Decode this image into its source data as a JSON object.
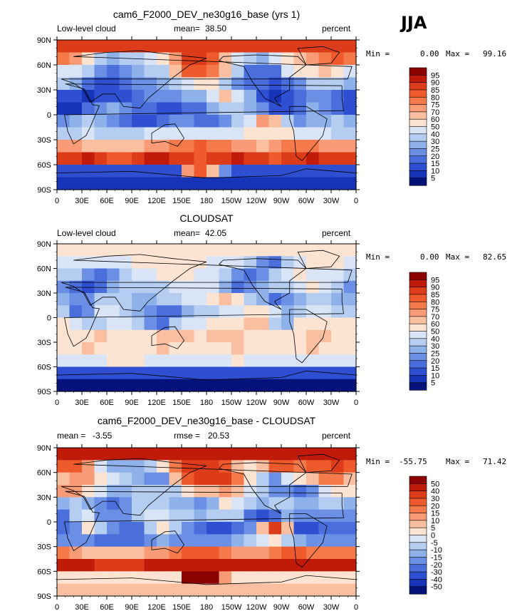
{
  "season": "JJA",
  "unit": "percent",
  "chart_data": [
    {
      "type": "heatmap",
      "title": "cam6_F2000_DEV_ne30g16_base (yrs 1)",
      "left_label": "Low-level cloud",
      "stat1_label": "mean=",
      "stat1_value": "38.50",
      "stat2_label": "",
      "stat2_value": "",
      "min_label": "Min =",
      "min_value": "0.00",
      "max_label": "Max =",
      "max_value": "99.16",
      "levels": [
        "95",
        "90",
        "85",
        "80",
        "75",
        "70",
        "60",
        "50",
        "40",
        "30",
        "25",
        "20",
        "15",
        "10",
        "5"
      ],
      "colors": [
        "#8b0000",
        "#c01a0a",
        "#dc3c1a",
        "#ee5a2c",
        "#f47a4c",
        "#f89b76",
        "#f9bfa0",
        "#fde4d2",
        "#d9e5f6",
        "#b4cdf0",
        "#8fb1ea",
        "#6a8fe4",
        "#4a6edc",
        "#2f4fd2",
        "#1733b8",
        "#05127a"
      ],
      "x_ticks": [
        "0",
        "30E",
        "60E",
        "90E",
        "120E",
        "150E",
        "180",
        "150W",
        "120W",
        "90W",
        "60W",
        "30W",
        "0"
      ],
      "y_ticks": [
        "90N",
        "60N",
        "30N",
        "0",
        "30S",
        "60S",
        "90S"
      ],
      "field": [
        [
          88,
          88,
          88,
          88,
          88,
          88,
          88,
          88,
          88,
          88,
          88,
          88,
          88,
          88,
          88,
          88,
          88,
          88,
          88,
          88,
          88,
          88,
          88,
          88
        ],
        [
          75,
          72,
          50,
          35,
          28,
          30,
          35,
          45,
          55,
          70,
          85,
          88,
          82,
          65,
          45,
          30,
          28,
          40,
          55,
          60,
          72,
          78,
          80,
          76
        ],
        [
          40,
          45,
          30,
          22,
          18,
          20,
          25,
          30,
          32,
          60,
          80,
          84,
          78,
          60,
          35,
          18,
          15,
          18,
          40,
          50,
          55,
          60,
          55,
          45
        ],
        [
          30,
          28,
          15,
          12,
          14,
          18,
          20,
          22,
          25,
          30,
          45,
          55,
          50,
          35,
          20,
          15,
          15,
          12,
          15,
          20,
          30,
          35,
          30,
          25
        ],
        [
          12,
          10,
          8,
          10,
          12,
          10,
          15,
          20,
          22,
          22,
          25,
          28,
          40,
          60,
          45,
          25,
          12,
          8,
          10,
          15,
          20,
          22,
          18,
          14
        ],
        [
          8,
          6,
          15,
          20,
          25,
          22,
          18,
          15,
          12,
          12,
          15,
          18,
          25,
          30,
          35,
          28,
          20,
          10,
          12,
          18,
          25,
          22,
          18,
          12
        ],
        [
          20,
          25,
          30,
          25,
          20,
          15,
          12,
          12,
          18,
          20,
          20,
          15,
          15,
          20,
          30,
          40,
          70,
          60,
          30,
          20,
          25,
          28,
          30,
          25
        ],
        [
          35,
          38,
          40,
          35,
          30,
          32,
          35,
          40,
          45,
          42,
          40,
          40,
          42,
          45,
          48,
          50,
          52,
          55,
          50,
          45,
          42,
          40,
          38,
          36
        ],
        [
          72,
          70,
          68,
          65,
          62,
          60,
          65,
          70,
          72,
          75,
          78,
          80,
          78,
          75,
          72,
          70,
          68,
          72,
          76,
          78,
          76,
          74,
          72,
          72
        ],
        [
          85,
          88,
          90,
          86,
          82,
          84,
          88,
          90,
          92,
          88,
          86,
          84,
          86,
          88,
          90,
          88,
          86,
          84,
          86,
          88,
          90,
          88,
          86,
          85
        ],
        [
          10,
          10,
          10,
          10,
          10,
          10,
          10,
          10,
          10,
          10,
          70,
          80,
          60,
          20,
          10,
          10,
          10,
          10,
          10,
          10,
          10,
          10,
          10,
          10
        ],
        [
          5,
          5,
          5,
          5,
          5,
          5,
          5,
          5,
          5,
          5,
          5,
          5,
          5,
          5,
          5,
          5,
          5,
          5,
          5,
          5,
          5,
          5,
          5,
          5
        ]
      ]
    },
    {
      "type": "heatmap",
      "title": "CLOUDSAT",
      "left_label": "Low-level cloud",
      "stat1_label": "mean=",
      "stat1_value": "42.05",
      "stat2_label": "",
      "stat2_value": "",
      "min_label": "Min =",
      "min_value": "0.00",
      "max_label": "Max =",
      "max_value": "82.65",
      "levels": [
        "95",
        "90",
        "85",
        "80",
        "75",
        "70",
        "60",
        "50",
        "40",
        "30",
        "25",
        "20",
        "15",
        "10",
        "5"
      ],
      "colors": [
        "#8b0000",
        "#c01a0a",
        "#dc3c1a",
        "#ee5a2c",
        "#f47a4c",
        "#f89b76",
        "#f9bfa0",
        "#fde4d2",
        "#d9e5f6",
        "#b4cdf0",
        "#8fb1ea",
        "#6a8fe4",
        "#4a6edc",
        "#2f4fd2",
        "#1733b8",
        "#05127a"
      ],
      "x_ticks": [
        "0",
        "30E",
        "60E",
        "90E",
        "120E",
        "150E",
        "180",
        "150W",
        "120W",
        "90W",
        "60W",
        "30W",
        "0"
      ],
      "y_ticks": [
        "90N",
        "60N",
        "30N",
        "0",
        "30S",
        "60S",
        "90S"
      ],
      "field": [
        [
          55,
          55,
          55,
          55,
          55,
          55,
          55,
          55,
          55,
          55,
          55,
          55,
          55,
          55,
          55,
          55,
          55,
          55,
          55,
          55,
          55,
          55,
          55,
          55
        ],
        [
          48,
          45,
          42,
          40,
          42,
          45,
          50,
          52,
          55,
          55,
          52,
          50,
          48,
          45,
          40,
          30,
          20,
          15,
          35,
          45,
          50,
          52,
          50,
          48
        ],
        [
          35,
          30,
          20,
          18,
          22,
          30,
          40,
          48,
          52,
          55,
          52,
          48,
          40,
          30,
          20,
          15,
          22,
          35,
          45,
          50,
          48,
          45,
          40,
          36
        ],
        [
          20,
          15,
          12,
          15,
          25,
          30,
          30,
          32,
          35,
          40,
          45,
          48,
          45,
          25,
          15,
          20,
          25,
          30,
          35,
          45,
          50,
          40,
          30,
          22
        ],
        [
          25,
          20,
          22,
          30,
          38,
          30,
          25,
          28,
          32,
          35,
          40,
          45,
          55,
          60,
          50,
          35,
          25,
          15,
          20,
          28,
          35,
          32,
          28,
          26
        ],
        [
          30,
          15,
          20,
          40,
          45,
          38,
          28,
          20,
          15,
          18,
          25,
          30,
          35,
          40,
          45,
          50,
          55,
          40,
          25,
          35,
          45,
          40,
          35,
          32
        ],
        [
          50,
          45,
          30,
          35,
          40,
          45,
          35,
          20,
          15,
          30,
          40,
          45,
          50,
          55,
          58,
          60,
          62,
          30,
          25,
          55,
          58,
          55,
          52,
          50
        ],
        [
          55,
          56,
          58,
          60,
          58,
          55,
          56,
          58,
          60,
          62,
          60,
          58,
          60,
          62,
          60,
          58,
          56,
          55,
          56,
          58,
          60,
          60,
          58,
          56
        ],
        [
          56,
          58,
          60,
          58,
          56,
          55,
          56,
          58,
          60,
          58,
          56,
          55,
          56,
          58,
          60,
          58,
          56,
          55,
          56,
          58,
          60,
          58,
          56,
          56
        ],
        [
          40,
          42,
          45,
          48,
          50,
          52,
          50,
          48,
          45,
          42,
          40,
          42,
          45,
          48,
          50,
          48,
          45,
          42,
          40,
          42,
          45,
          48,
          45,
          42
        ],
        [
          10,
          10,
          10,
          10,
          10,
          10,
          10,
          10,
          10,
          10,
          10,
          10,
          10,
          10,
          10,
          10,
          10,
          10,
          10,
          10,
          10,
          10,
          10,
          10
        ],
        [
          0,
          0,
          0,
          0,
          0,
          0,
          0,
          0,
          0,
          0,
          0,
          0,
          0,
          0,
          0,
          0,
          0,
          0,
          0,
          0,
          0,
          0,
          0,
          0
        ]
      ]
    },
    {
      "type": "heatmap",
      "title": "cam6_F2000_DEV_ne30g16_base - CLOUDSAT",
      "left_label": "",
      "stat1_label": "mean =",
      "stat1_value": "-3.55",
      "stat2_label": "rmse =",
      "stat2_value": "20.53",
      "min_label": "Min =",
      "min_value": "-55.75",
      "max_label": "Max =",
      "max_value": "71.42",
      "levels": [
        "50",
        "40",
        "30",
        "20",
        "15",
        "10",
        "5",
        "0",
        "-5",
        "-10",
        "-15",
        "-20",
        "-30",
        "-40",
        "-50"
      ],
      "colors": [
        "#8b0000",
        "#c01a0a",
        "#dc3c1a",
        "#ee5a2c",
        "#f47a4c",
        "#f89b76",
        "#f9bfa0",
        "#fde4d2",
        "#d9e5f6",
        "#b4cdf0",
        "#8fb1ea",
        "#6a8fe4",
        "#4a6edc",
        "#2f4fd2",
        "#1733b8",
        "#05127a"
      ],
      "x_ticks": [
        "0",
        "30E",
        "60E",
        "90E",
        "120E",
        "150E",
        "180",
        "150W",
        "120W",
        "90W",
        "60W",
        "30W",
        "0"
      ],
      "y_ticks": [
        "90N",
        "60N",
        "30N",
        "0",
        "30S",
        "60S",
        "90S"
      ],
      "field": [
        [
          40,
          40,
          40,
          40,
          40,
          40,
          40,
          40,
          40,
          40,
          40,
          40,
          40,
          40,
          40,
          40,
          40,
          40,
          40,
          40,
          40,
          40,
          40,
          40
        ],
        [
          25,
          25,
          10,
          -5,
          -12,
          -15,
          -15,
          -8,
          0,
          15,
          30,
          35,
          32,
          20,
          5,
          0,
          8,
          25,
          20,
          15,
          22,
          26,
          30,
          28
        ],
        [
          5,
          12,
          10,
          2,
          -5,
          -10,
          -15,
          -18,
          -20,
          5,
          28,
          36,
          38,
          30,
          15,
          3,
          -7,
          -17,
          -5,
          0,
          7,
          15,
          15,
          9
        ],
        [
          10,
          13,
          3,
          -3,
          -11,
          -12,
          -10,
          -10,
          -10,
          -10,
          0,
          7,
          5,
          10,
          5,
          -5,
          -10,
          -18,
          -20,
          -25,
          -20,
          -5,
          0,
          3
        ],
        [
          -13,
          -10,
          -14,
          -20,
          -26,
          -20,
          -10,
          -8,
          -10,
          -13,
          -15,
          -17,
          -15,
          0,
          -5,
          -10,
          -13,
          -7,
          -10,
          -13,
          -15,
          -10,
          -10,
          -12
        ],
        [
          -22,
          -9,
          -5,
          -20,
          -20,
          -16,
          -10,
          -5,
          -3,
          -6,
          -10,
          -12,
          -10,
          -10,
          -10,
          -22,
          -35,
          -30,
          -13,
          -17,
          -20,
          -18,
          -17,
          -20
        ],
        [
          -30,
          -20,
          0,
          -10,
          -20,
          -30,
          -23,
          -8,
          3,
          -10,
          -20,
          -30,
          -35,
          -35,
          -28,
          -20,
          8,
          30,
          5,
          -35,
          -33,
          -27,
          -22,
          -25
        ],
        [
          -20,
          -18,
          -18,
          -25,
          -28,
          -23,
          -21,
          -18,
          -15,
          -20,
          -20,
          -18,
          -18,
          -17,
          -12,
          -8,
          -4,
          0,
          -6,
          -13,
          -18,
          -20,
          -20,
          -20
        ],
        [
          16,
          12,
          8,
          7,
          6,
          5,
          9,
          12,
          12,
          17,
          22,
          25,
          22,
          17,
          12,
          12,
          12,
          17,
          20,
          20,
          16,
          16,
          16,
          16
        ],
        [
          45,
          46,
          45,
          38,
          32,
          32,
          38,
          42,
          47,
          46,
          46,
          42,
          41,
          40,
          40,
          40,
          41,
          42,
          46,
          46,
          45,
          40,
          41,
          43
        ],
        [
          0,
          0,
          0,
          0,
          0,
          0,
          0,
          0,
          0,
          0,
          60,
          70,
          50,
          10,
          0,
          0,
          0,
          0,
          0,
          0,
          0,
          0,
          0,
          0
        ],
        [
          5,
          5,
          5,
          5,
          5,
          5,
          5,
          5,
          5,
          5,
          5,
          5,
          5,
          5,
          5,
          5,
          5,
          5,
          5,
          5,
          5,
          5,
          5,
          5
        ]
      ]
    }
  ]
}
